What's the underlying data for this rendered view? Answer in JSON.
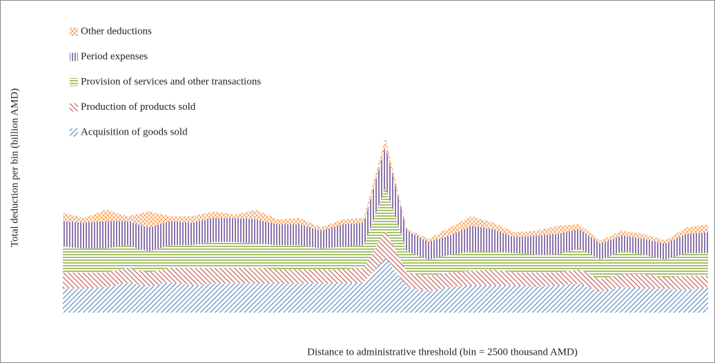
{
  "chart_data": {
    "type": "stacked_area",
    "xlabel": "Distance to administrative threshold (bin = 2500 thousand AMD)",
    "ylabel": "Total deduction per bin (billion AMD)",
    "x": [
      -15,
      -14,
      -13,
      -12,
      -11,
      -10,
      -9,
      -8,
      -7,
      -6,
      -5,
      -4,
      -3,
      -2,
      -1,
      0,
      1,
      2,
      3,
      4,
      5,
      6,
      7,
      8,
      9,
      10,
      11,
      12,
      13,
      14,
      15
    ],
    "xlim": [
      -15,
      15
    ],
    "xticks": [
      -15,
      -12,
      -9,
      -6,
      -3,
      0,
      3,
      6,
      9,
      12,
      15
    ],
    "ylim": [
      0,
      90
    ],
    "yticks": [
      0,
      15,
      30,
      45,
      60,
      75,
      90
    ],
    "grid": true,
    "series": [
      {
        "name": "Acquisition of goods sold",
        "color": "#4f81bd",
        "values": [
          7.5,
          7.5,
          8,
          9.5,
          8,
          9.5,
          8.5,
          9,
          9,
          9,
          9,
          9,
          9,
          9,
          9.5,
          17,
          8,
          6.5,
          8,
          8.5,
          8.5,
          8.5,
          8,
          8.5,
          9,
          6.5,
          8,
          7.5,
          7.5,
          7,
          8
        ]
      },
      {
        "name": "Production of products sold",
        "color": "#c0504d",
        "values": [
          5,
          5,
          4.5,
          4.5,
          4.5,
          4.5,
          5.5,
          5,
          5,
          5,
          4.5,
          4.5,
          4.5,
          4.5,
          4.5,
          8.5,
          4.5,
          5,
          4.5,
          4.5,
          5,
          4,
          4.5,
          4,
          4.5,
          4,
          4,
          4.5,
          3.5,
          4.5,
          3.5
        ]
      },
      {
        "name": "Provision of services and other transactions",
        "color": "#9bbb59",
        "values": [
          8,
          7.5,
          7.5,
          7,
          6.5,
          7,
          7,
          8,
          8,
          7.5,
          7.5,
          7.5,
          6.5,
          7,
          7,
          13.5,
          6.5,
          5,
          5.5,
          6,
          5.5,
          6,
          5.5,
          5.5,
          6.5,
          6,
          7,
          6,
          5.5,
          7,
          7
        ]
      },
      {
        "name": "Period expenses",
        "color": "#8064a2",
        "values": [
          8,
          8,
          8.5,
          7.5,
          7.5,
          7.5,
          7,
          7.5,
          7.5,
          7.5,
          6.5,
          6.5,
          5.5,
          7,
          7,
          13,
          6.5,
          5.5,
          6,
          8,
          7,
          5,
          6,
          6.5,
          6,
          5,
          5,
          5,
          5,
          6,
          6.5
        ]
      },
      {
        "name": "Other deductions",
        "color": "#f79646",
        "values": [
          2.5,
          1.5,
          3.5,
          1.5,
          5,
          1.5,
          2,
          2,
          1,
          3,
          1.5,
          2,
          1,
          1.5,
          1.5,
          2.5,
          0.5,
          1,
          2.5,
          3,
          2,
          1.5,
          1.5,
          2.5,
          1.5,
          1,
          1.5,
          1.5,
          1,
          2,
          2.5
        ]
      }
    ]
  }
}
